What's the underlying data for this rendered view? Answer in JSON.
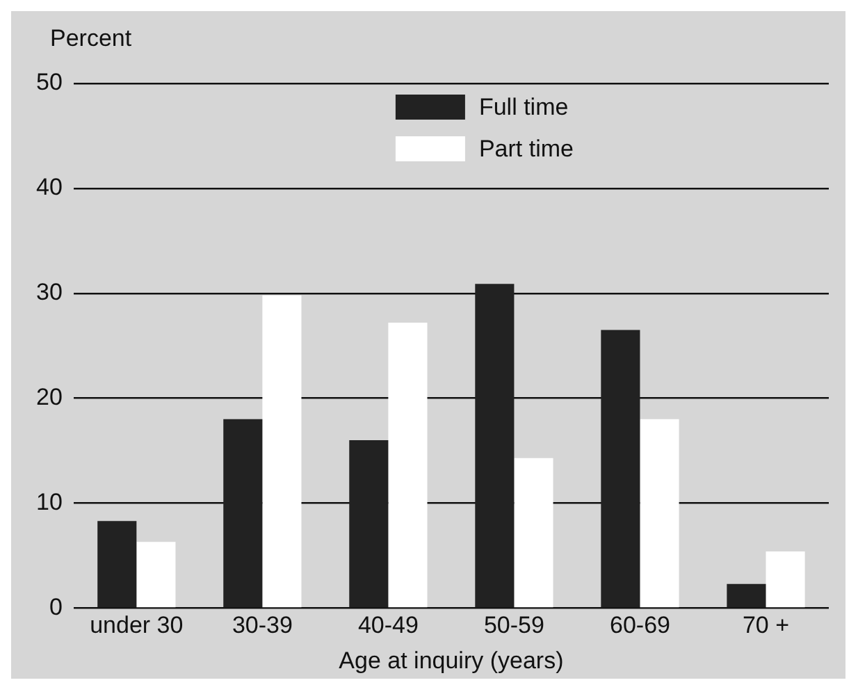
{
  "chart_data": {
    "type": "bar",
    "ylabel": "Percent",
    "xlabel": "Age at inquiry (years)",
    "categories": [
      "under 30",
      "30-39",
      "40-49",
      "50-59",
      "60-69",
      "70 +"
    ],
    "series": [
      {
        "name": "Full time",
        "color": "#222222",
        "values": [
          8.3,
          18,
          16,
          30.9,
          26.5,
          2.3
        ]
      },
      {
        "name": "Part time",
        "color": "#ffffff",
        "values": [
          6.3,
          29.8,
          27.2,
          14.3,
          18,
          5.4
        ]
      }
    ],
    "ylim": [
      0,
      50
    ],
    "yticks": [
      0,
      10,
      20,
      30,
      40,
      50
    ],
    "grid": "y",
    "legend": "top"
  }
}
